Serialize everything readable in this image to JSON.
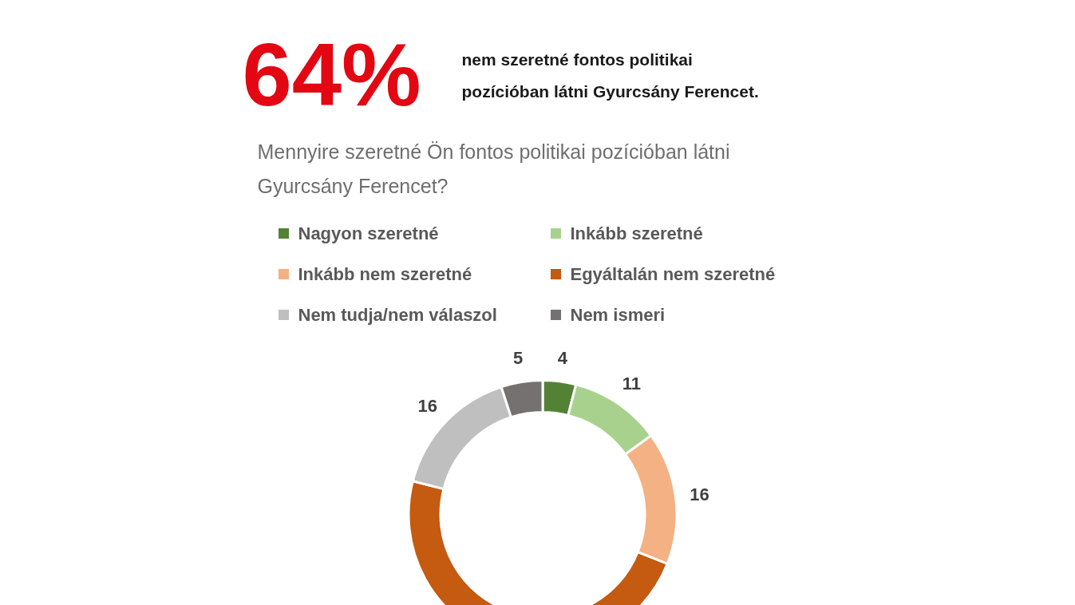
{
  "chart_data": {
    "type": "donut",
    "title": "64%",
    "subtitle": "nem szeretné fontos politikai\npozícióban látni Gyurcsány Ferencet.",
    "annotations": [
      "Mennyire szeretné Ön fontos politikai pozícióban látni\nGyurcsány Ferencet?"
    ],
    "categories": [
      "Nagyon szeretné",
      "Inkább szeretné",
      "Inkább nem szeretné",
      "Egyáltalán nem szeretné",
      "Nem tudja/nem válaszol",
      "Nem ismeri"
    ],
    "values": [
      4,
      11,
      16,
      48,
      16,
      5
    ],
    "colors": [
      "#548235",
      "#a9d18e",
      "#f4b183",
      "#c55a11",
      "#bfbfbf",
      "#767171"
    ],
    "value_labels": [
      "4",
      "11",
      "16",
      null,
      "16",
      "5"
    ],
    "legend": "top"
  }
}
